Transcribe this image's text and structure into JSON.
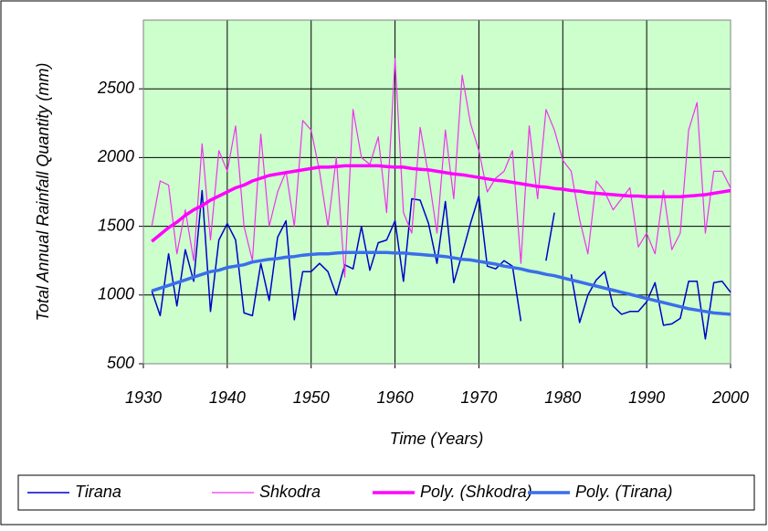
{
  "chart_data": {
    "type": "line",
    "ylabel": "Total Annual Rainfall Quantity  (mm)",
    "xlabel": "Time  (Years)",
    "xlim": [
      1930,
      2000
    ],
    "xticks": [
      1930,
      1940,
      1950,
      1960,
      1970,
      1980,
      1990,
      2000
    ],
    "ylim": [
      500,
      3000
    ],
    "yticks": [
      500,
      1000,
      1500,
      2000,
      2500
    ],
    "grid": true,
    "background": "#ccffcc",
    "legend": "bottom",
    "x": [
      1931,
      1932,
      1933,
      1934,
      1935,
      1936,
      1937,
      1938,
      1939,
      1940,
      1941,
      1942,
      1943,
      1944,
      1945,
      1946,
      1947,
      1948,
      1949,
      1950,
      1951,
      1952,
      1953,
      1954,
      1955,
      1956,
      1957,
      1958,
      1959,
      1960,
      1961,
      1962,
      1963,
      1964,
      1965,
      1966,
      1967,
      1968,
      1969,
      1970,
      1971,
      1972,
      1973,
      1974,
      1975,
      1976,
      1977,
      1978,
      1979,
      1980,
      1981,
      1982,
      1983,
      1984,
      1985,
      1986,
      1987,
      1988,
      1989,
      1990,
      1991,
      1992,
      1993,
      1994,
      1995,
      1996,
      1997,
      1998,
      1999,
      2000
    ],
    "series": [
      {
        "name": "Tirana",
        "color": "#0000c8",
        "width": 1.5,
        "values": [
          1030,
          850,
          1300,
          920,
          1330,
          1100,
          1760,
          880,
          1400,
          1520,
          1400,
          870,
          850,
          1230,
          960,
          1420,
          1540,
          820,
          1170,
          1170,
          1230,
          1170,
          1000,
          1220,
          1190,
          1500,
          1180,
          1380,
          1400,
          1540,
          1100,
          1700,
          1690,
          1520,
          1230,
          1680,
          1090,
          1300,
          1520,
          1720,
          1210,
          1190,
          1250,
          1210,
          810,
          null,
          null,
          1250,
          1600,
          null,
          1150,
          800,
          1000,
          1110,
          1170,
          920,
          860,
          880,
          880,
          950,
          1090,
          780,
          790,
          830,
          1100,
          1100,
          680,
          1090,
          1100,
          1020
        ]
      },
      {
        "name": "Shkodra",
        "color": "#ee33ee",
        "width": 1.2,
        "values": [
          1500,
          1830,
          1800,
          1300,
          1620,
          1250,
          2100,
          1400,
          2050,
          1900,
          2230,
          1500,
          1250,
          2170,
          1500,
          1750,
          1900,
          1500,
          2270,
          2200,
          1900,
          1500,
          2000,
          1130,
          2350,
          2000,
          1950,
          2150,
          1600,
          2720,
          1600,
          1450,
          2220,
          1870,
          1450,
          2200,
          1700,
          2600,
          2250,
          2050,
          1750,
          1850,
          1900,
          2050,
          1230,
          2230,
          1700,
          2350,
          2200,
          1980,
          1900,
          1550,
          1300,
          1830,
          1750,
          1620,
          1700,
          1780,
          1350,
          1450,
          1300,
          1760,
          1330,
          1450,
          2200,
          2400,
          1450,
          1900,
          1900,
          1780
        ]
      },
      {
        "name": "Poly. (Shkodra)",
        "color": "#ff00ff",
        "width": 3.5,
        "values": [
          1390,
          1440,
          1490,
          1530,
          1580,
          1620,
          1650,
          1690,
          1720,
          1750,
          1780,
          1800,
          1830,
          1850,
          1870,
          1880,
          1890,
          1900,
          1910,
          1920,
          1930,
          1930,
          1935,
          1940,
          1940,
          1940,
          1940,
          1940,
          1935,
          1930,
          1930,
          1920,
          1915,
          1910,
          1900,
          1890,
          1880,
          1875,
          1865,
          1855,
          1845,
          1835,
          1830,
          1820,
          1810,
          1800,
          1790,
          1785,
          1775,
          1770,
          1760,
          1755,
          1745,
          1740,
          1735,
          1730,
          1725,
          1720,
          1720,
          1715,
          1715,
          1715,
          1715,
          1715,
          1720,
          1725,
          1730,
          1740,
          1750,
          1760
        ]
      },
      {
        "name": "Poly. (Tirana)",
        "color": "#3a6eea",
        "width": 3.5,
        "values": [
          1030,
          1050,
          1070,
          1090,
          1110,
          1130,
          1150,
          1170,
          1180,
          1200,
          1210,
          1220,
          1240,
          1250,
          1260,
          1265,
          1275,
          1280,
          1290,
          1295,
          1300,
          1300,
          1305,
          1310,
          1310,
          1310,
          1310,
          1310,
          1310,
          1305,
          1305,
          1300,
          1295,
          1290,
          1285,
          1280,
          1270,
          1260,
          1255,
          1245,
          1235,
          1225,
          1210,
          1200,
          1190,
          1175,
          1165,
          1150,
          1140,
          1125,
          1110,
          1095,
          1080,
          1065,
          1050,
          1035,
          1020,
          1005,
          990,
          975,
          960,
          945,
          930,
          915,
          900,
          890,
          880,
          870,
          865,
          860
        ]
      }
    ]
  }
}
